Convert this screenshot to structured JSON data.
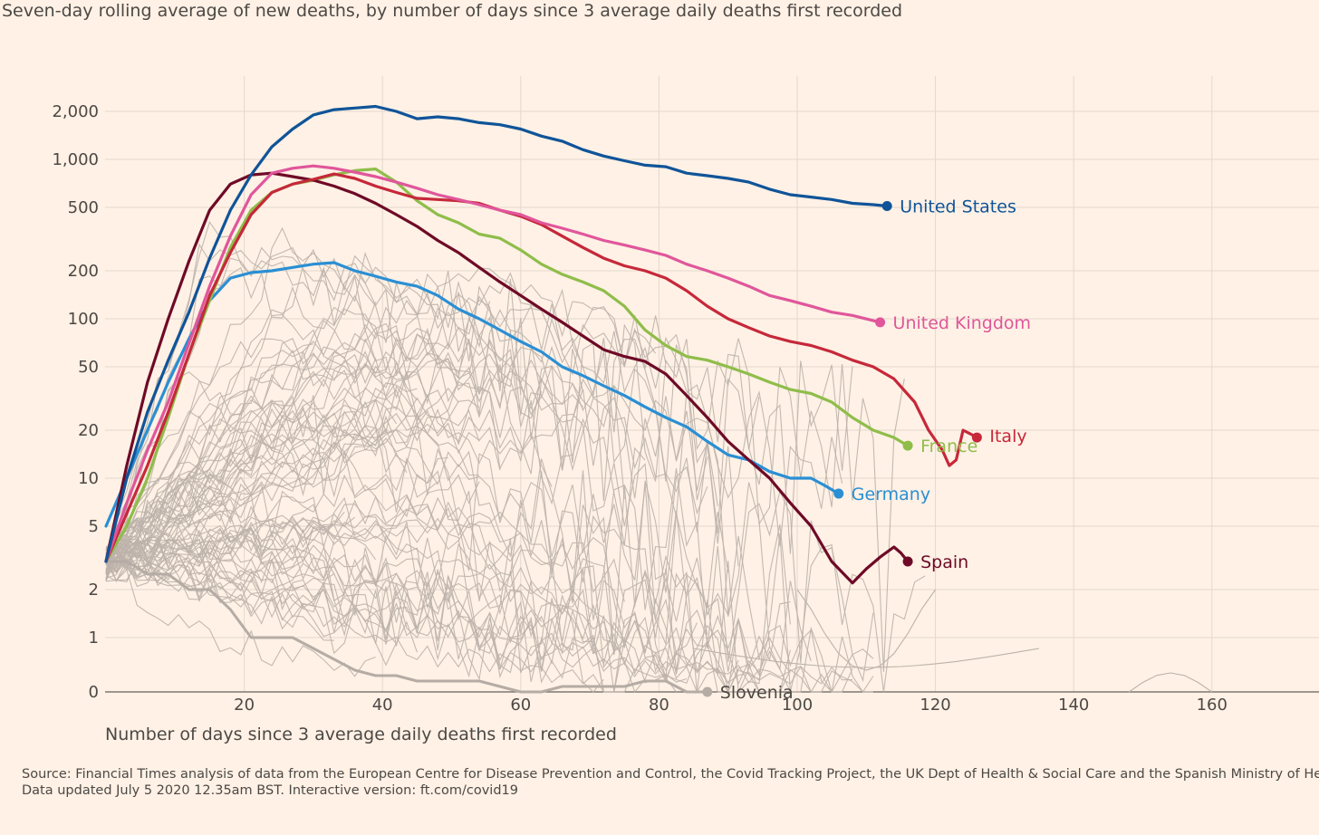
{
  "subtitle": "Seven-day rolling average of new deaths, by number of days since 3 average daily deaths first recorded",
  "source": {
    "line1": "Source: Financial Times analysis of data from the European Centre for Disease Prevention and Control, the Covid Tracking Project, the UK Dept of Health & Social Care and the Spanish Ministry of Health.",
    "line2": "Data updated July 5 2020 12.35am BST. Interactive version: ft.com/covid19"
  },
  "chart_data": {
    "type": "line",
    "title": "",
    "subtitle": "Seven-day rolling average of new deaths, by number of days since 3 average daily deaths first recorded",
    "xlabel": "Number of days since 3 average daily deaths first recorded",
    "ylabel": "",
    "xlim": [
      0,
      175
    ],
    "ylim": [
      0,
      3000
    ],
    "yscale": "log (symlog, 0 at bottom)",
    "grid": true,
    "legend": "direct labels at line ends",
    "x_ticks": [
      20,
      40,
      60,
      80,
      100,
      120,
      140,
      160
    ],
    "x_tick_labels": [
      "20",
      "40",
      "60",
      "80",
      "100",
      "120",
      "140",
      "160"
    ],
    "y_ticks": [
      0,
      1,
      2,
      5,
      10,
      20,
      50,
      100,
      200,
      500,
      1000,
      2000
    ],
    "y_tick_labels": [
      "0",
      "1",
      "2",
      "5",
      "10",
      "20",
      "50",
      "100",
      "200",
      "500",
      "1,000",
      "2,000"
    ],
    "colors": {
      "United States": "#0f5499",
      "United Kingdom": "#e0569b",
      "Italy": "#c6283a",
      "France": "#8fbd4a",
      "Germany": "#2a8fd4",
      "Spain": "#6e0a27",
      "Slovenia": "#b5aca5",
      "others": "#bcb3ab"
    },
    "series": [
      {
        "name": "United States",
        "x": [
          0,
          3,
          6,
          9,
          12,
          15,
          18,
          21,
          24,
          27,
          30,
          33,
          36,
          39,
          42,
          45,
          48,
          51,
          54,
          57,
          60,
          63,
          66,
          69,
          72,
          75,
          78,
          81,
          84,
          87,
          90,
          93,
          96,
          99,
          102,
          105,
          108,
          111,
          113
        ],
        "y": [
          3,
          10,
          26,
          55,
          110,
          240,
          480,
          800,
          1200,
          1550,
          1900,
          2050,
          2100,
          2150,
          2000,
          1800,
          1850,
          1800,
          1700,
          1650,
          1550,
          1400,
          1300,
          1150,
          1050,
          980,
          920,
          900,
          820,
          790,
          760,
          720,
          650,
          600,
          580,
          560,
          530,
          520,
          510
        ]
      },
      {
        "name": "United Kingdom",
        "x": [
          0,
          3,
          6,
          9,
          12,
          15,
          18,
          21,
          24,
          27,
          30,
          33,
          36,
          39,
          42,
          45,
          48,
          51,
          54,
          57,
          60,
          63,
          66,
          69,
          72,
          75,
          78,
          81,
          84,
          87,
          90,
          93,
          96,
          99,
          102,
          105,
          108,
          112
        ],
        "y": [
          3,
          7,
          15,
          30,
          70,
          160,
          330,
          600,
          820,
          880,
          910,
          880,
          830,
          780,
          720,
          660,
          600,
          560,
          520,
          480,
          450,
          400,
          370,
          340,
          310,
          290,
          270,
          250,
          220,
          200,
          180,
          160,
          140,
          130,
          120,
          110,
          105,
          95
        ]
      },
      {
        "name": "Italy",
        "x": [
          0,
          3,
          6,
          9,
          12,
          15,
          18,
          21,
          24,
          27,
          30,
          33,
          36,
          39,
          42,
          45,
          48,
          51,
          54,
          57,
          60,
          63,
          66,
          69,
          72,
          75,
          78,
          81,
          84,
          87,
          90,
          93,
          96,
          99,
          102,
          105,
          108,
          111,
          114,
          117,
          119,
          121,
          122,
          123,
          124,
          125,
          126
        ],
        "y": [
          3,
          6,
          12,
          26,
          60,
          140,
          260,
          450,
          620,
          700,
          750,
          810,
          760,
          680,
          620,
          570,
          560,
          550,
          530,
          480,
          440,
          390,
          330,
          280,
          240,
          215,
          200,
          180,
          150,
          120,
          100,
          88,
          78,
          72,
          68,
          62,
          55,
          50,
          42,
          30,
          20,
          15,
          12,
          13,
          20,
          19,
          18
        ]
      },
      {
        "name": "France",
        "x": [
          0,
          3,
          6,
          9,
          12,
          15,
          18,
          21,
          24,
          27,
          30,
          33,
          36,
          39,
          42,
          45,
          48,
          51,
          54,
          57,
          60,
          63,
          66,
          69,
          72,
          75,
          78,
          81,
          84,
          87,
          90,
          93,
          96,
          99,
          102,
          105,
          108,
          111,
          114,
          116
        ],
        "y": [
          3,
          5,
          10,
          24,
          60,
          130,
          280,
          480,
          620,
          700,
          740,
          800,
          850,
          870,
          720,
          550,
          450,
          400,
          340,
          320,
          270,
          220,
          190,
          170,
          150,
          120,
          85,
          68,
          58,
          55,
          50,
          45,
          40,
          36,
          34,
          30,
          24,
          20,
          18,
          16
        ]
      },
      {
        "name": "Germany",
        "x": [
          0,
          3,
          6,
          9,
          12,
          15,
          18,
          21,
          24,
          27,
          30,
          33,
          36,
          39,
          42,
          45,
          48,
          51,
          54,
          57,
          60,
          63,
          66,
          69,
          72,
          75,
          78,
          81,
          84,
          87,
          90,
          93,
          96,
          99,
          102,
          104,
          106
        ],
        "y": [
          5,
          10,
          20,
          40,
          75,
          130,
          180,
          195,
          200,
          210,
          220,
          225,
          200,
          185,
          170,
          160,
          140,
          115,
          100,
          85,
          72,
          62,
          50,
          44,
          38,
          33,
          28,
          24,
          21,
          17,
          14,
          13,
          11,
          10,
          10,
          9,
          8
        ]
      },
      {
        "name": "Spain",
        "x": [
          0,
          3,
          6,
          9,
          12,
          15,
          18,
          21,
          24,
          27,
          30,
          33,
          36,
          39,
          42,
          45,
          48,
          51,
          54,
          57,
          60,
          63,
          66,
          69,
          72,
          75,
          78,
          81,
          84,
          87,
          90,
          93,
          96,
          99,
          102,
          105,
          108,
          110,
          112,
          114,
          115,
          116
        ],
        "y": [
          3,
          12,
          40,
          100,
          230,
          480,
          700,
          800,
          820,
          780,
          740,
          680,
          610,
          530,
          450,
          380,
          310,
          260,
          210,
          170,
          140,
          115,
          95,
          78,
          64,
          58,
          54,
          45,
          33,
          24,
          17,
          13,
          10,
          7,
          5,
          3,
          2.2,
          2.7,
          3.2,
          3.7,
          3.4,
          3
        ]
      },
      {
        "name": "Slovenia",
        "x": [
          0,
          3,
          6,
          9,
          12,
          15,
          18,
          21,
          24,
          27,
          30,
          33,
          36,
          39,
          42,
          45,
          48,
          51,
          54,
          57,
          60,
          63,
          66,
          69,
          72,
          75,
          78,
          81,
          84,
          87
        ],
        "y": [
          3,
          3,
          2.5,
          2.5,
          2,
          2,
          1.5,
          1,
          1,
          1,
          0.8,
          0.6,
          0.4,
          0.3,
          0.3,
          0.2,
          0.2,
          0.2,
          0.2,
          0.1,
          0,
          0,
          0.1,
          0.1,
          0.1,
          0.1,
          0.2,
          0.2,
          0,
          0
        ]
      }
    ]
  }
}
